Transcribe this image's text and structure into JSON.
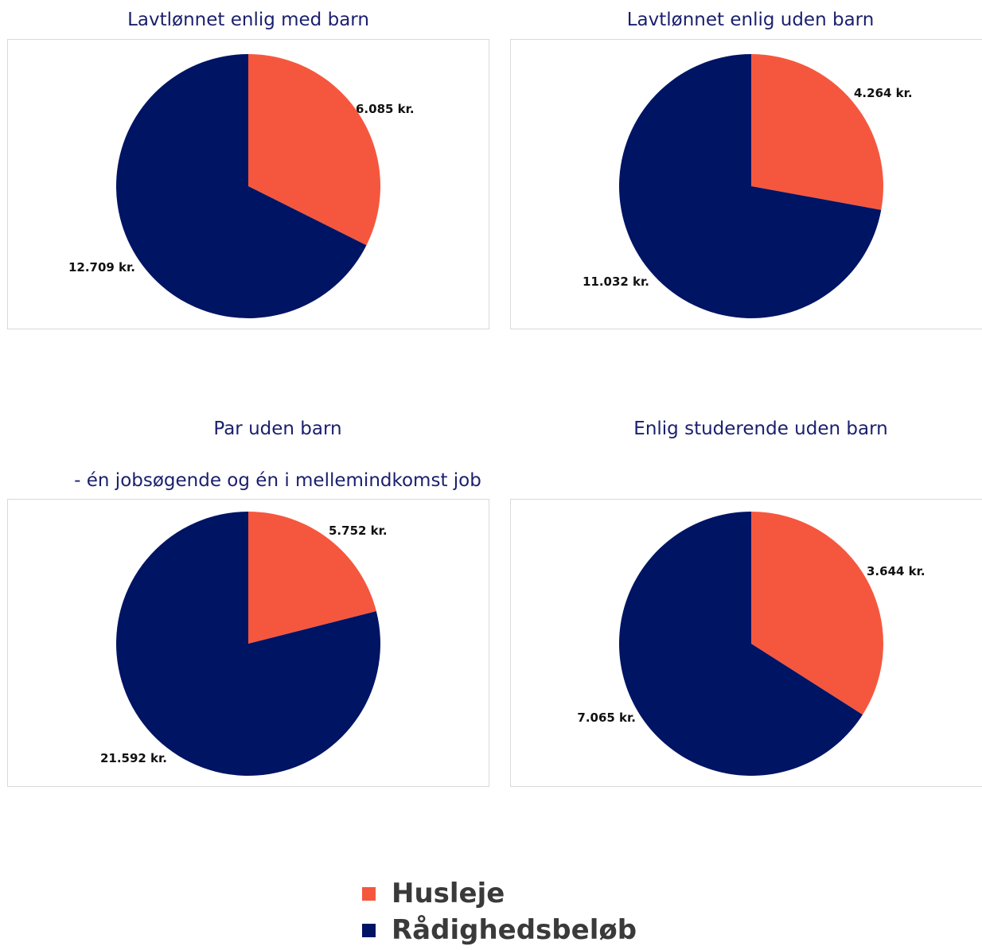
{
  "colors": {
    "husleje": "#f5573e",
    "raadighed": "#001464",
    "title": "#1a1f6e"
  },
  "legend": [
    {
      "label": "Husleje",
      "color": "#f5573e"
    },
    {
      "label": "Rådighedsbeløb",
      "color": "#001464"
    }
  ],
  "chart_data": [
    {
      "type": "pie",
      "title": "Lavtlønnet enlig med barn",
      "subtitle": "",
      "slices": [
        {
          "name": "Husleje",
          "value": 6085,
          "label": "6.085 kr.",
          "color": "#f5573e"
        },
        {
          "name": "Rådighedsbeløb",
          "value": 12709,
          "label": "12.709 kr.",
          "color": "#001464"
        }
      ]
    },
    {
      "type": "pie",
      "title": "Lavtlønnet enlig uden barn",
      "subtitle": "",
      "slices": [
        {
          "name": "Husleje",
          "value": 4264,
          "label": "4.264 kr.",
          "color": "#f5573e"
        },
        {
          "name": "Rådighedsbeløb",
          "value": 11032,
          "label": "11.032 kr.",
          "color": "#001464"
        }
      ]
    },
    {
      "type": "pie",
      "title": "Par uden barn",
      "subtitle": "- én jobsøgende og én i mellemindkomst job",
      "slices": [
        {
          "name": "Husleje",
          "value": 5752,
          "label": "5.752 kr.",
          "color": "#f5573e"
        },
        {
          "name": "Rådighedsbeløb",
          "value": 21592,
          "label": "21.592 kr.",
          "color": "#001464"
        }
      ]
    },
    {
      "type": "pie",
      "title": "Enlig studerende uden barn",
      "subtitle": "",
      "slices": [
        {
          "name": "Husleje",
          "value": 3644,
          "label": "3.644 kr.",
          "color": "#f5573e"
        },
        {
          "name": "Rådighedsbeløb",
          "value": 7065,
          "label": "7.065 kr.",
          "color": "#001464"
        }
      ]
    }
  ]
}
